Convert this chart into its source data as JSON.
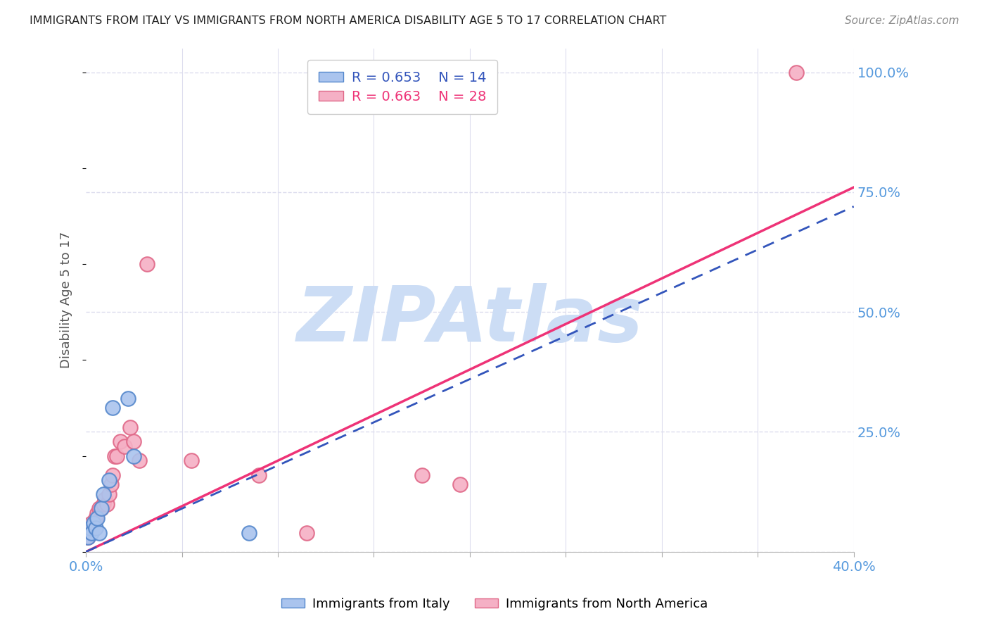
{
  "title": "IMMIGRANTS FROM ITALY VS IMMIGRANTS FROM NORTH AMERICA DISABILITY AGE 5 TO 17 CORRELATION CHART",
  "source": "Source: ZipAtlas.com",
  "ylabel": "Disability Age 5 to 17",
  "xlim": [
    0.0,
    0.4
  ],
  "ylim": [
    0.0,
    1.05
  ],
  "xticks": [
    0.0,
    0.05,
    0.1,
    0.15,
    0.2,
    0.25,
    0.3,
    0.35,
    0.4
  ],
  "yticks": [
    0.0,
    0.25,
    0.5,
    0.75,
    1.0
  ],
  "yticklabels_right": [
    "",
    "25.0%",
    "50.0%",
    "75.0%",
    "100.0%"
  ],
  "legend_R1": "R = 0.653",
  "legend_N1": "N = 14",
  "legend_R2": "R = 0.663",
  "legend_N2": "N = 28",
  "italy_color": "#aac4ee",
  "italy_edge": "#5588cc",
  "na_color": "#f5b0c5",
  "na_edge": "#e06888",
  "italy_line_color": "#3355bb",
  "na_line_color": "#ee3377",
  "axis_label_color": "#5599dd",
  "italy_line_x": [
    0.0,
    0.4
  ],
  "italy_line_y": [
    0.0,
    0.72
  ],
  "na_line_x": [
    0.0,
    0.4
  ],
  "na_line_y": [
    0.0,
    0.76
  ],
  "italy_points_x": [
    0.001,
    0.002,
    0.003,
    0.004,
    0.005,
    0.006,
    0.007,
    0.008,
    0.009,
    0.012,
    0.014,
    0.022,
    0.025,
    0.085
  ],
  "italy_points_y": [
    0.03,
    0.05,
    0.04,
    0.06,
    0.05,
    0.07,
    0.04,
    0.09,
    0.12,
    0.15,
    0.3,
    0.32,
    0.2,
    0.04
  ],
  "na_points_x": [
    0.001,
    0.002,
    0.003,
    0.004,
    0.005,
    0.006,
    0.007,
    0.008,
    0.009,
    0.01,
    0.011,
    0.012,
    0.013,
    0.014,
    0.015,
    0.016,
    0.018,
    0.02,
    0.023,
    0.025,
    0.028,
    0.032,
    0.055,
    0.09,
    0.175,
    0.195,
    0.37,
    0.115
  ],
  "na_points_y": [
    0.03,
    0.05,
    0.06,
    0.05,
    0.07,
    0.08,
    0.09,
    0.09,
    0.1,
    0.11,
    0.1,
    0.12,
    0.14,
    0.16,
    0.2,
    0.2,
    0.23,
    0.22,
    0.26,
    0.23,
    0.19,
    0.6,
    0.19,
    0.16,
    0.16,
    0.14,
    1.0,
    0.04
  ],
  "watermark_text": "ZIPAtlas",
  "watermark_color": "#ccddf5",
  "background_color": "#ffffff",
  "grid_color": "#ddddee",
  "grid_style": "--"
}
